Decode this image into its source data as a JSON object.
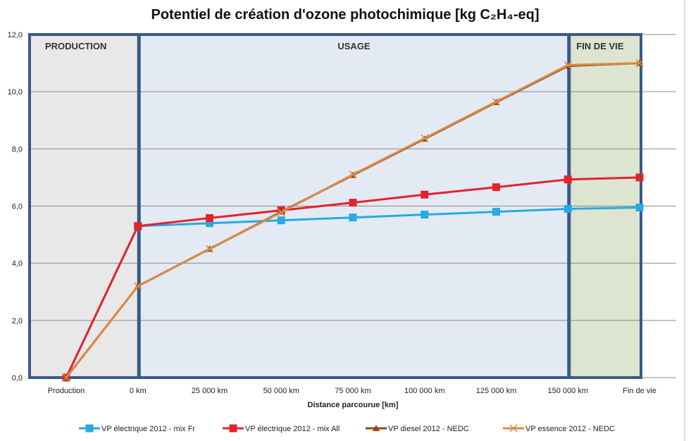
{
  "chart_data": {
    "type": "line",
    "title": "Potentiel de création d'ozone photochimique [kg C₂H₄-eq]",
    "xlabel": "Distance parcourue [km]",
    "ylabel": "",
    "ylim": [
      0,
      12
    ],
    "yticks": [
      "0,0",
      "2,0",
      "4,0",
      "6,0",
      "8,0",
      "10,0",
      "12,0"
    ],
    "grid": true,
    "legend_position": "bottom",
    "categories": [
      "Production",
      "0 km",
      "25 000 km",
      "50 000 km",
      "75 000 km",
      "100 000 km",
      "125 000 km",
      "150 000 km",
      "Fin de vie"
    ],
    "phases": [
      {
        "label": "PRODUCTION",
        "from": 0,
        "to": 1,
        "color": "#e8e8e8"
      },
      {
        "label": "USAGE",
        "from": 1,
        "to": 7,
        "color": "#e3eaf4"
      },
      {
        "label": "FIN DE VIE",
        "from": 7,
        "to": 8,
        "color": "#dde4d0"
      }
    ],
    "series": [
      {
        "name": "VP électrique 2012 - mix Fr",
        "color": "#27a9e1",
        "marker": "square",
        "values": [
          0,
          5.3,
          5.4,
          5.5,
          5.6,
          5.7,
          5.8,
          5.9,
          5.95
        ]
      },
      {
        "name": "VP électrique 2012 - mix All",
        "color": "#e3232c",
        "marker": "square",
        "values": [
          0,
          5.3,
          5.58,
          5.85,
          6.12,
          6.4,
          6.66,
          6.93,
          7.0
        ]
      },
      {
        "name": "VP diesel 2012 - NEDC",
        "color": "#8b4a1c",
        "marker": "triangle",
        "values": [
          0,
          3.2,
          4.5,
          5.8,
          7.08,
          8.35,
          9.63,
          10.9,
          11.0
        ]
      },
      {
        "name": "VP essence 2012 - NEDC",
        "color": "#d98a45",
        "marker": "x",
        "values": [
          0,
          3.2,
          4.5,
          5.78,
          7.1,
          8.37,
          9.65,
          10.93,
          11.0
        ]
      }
    ]
  }
}
